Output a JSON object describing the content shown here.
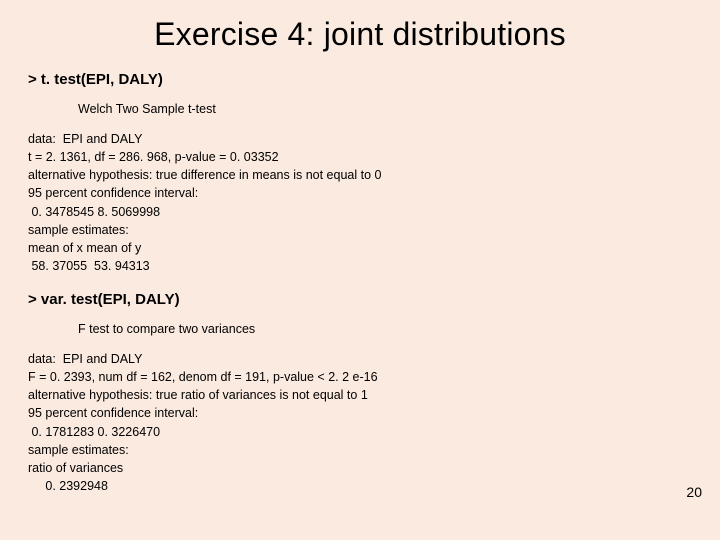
{
  "title": "Exercise 4: joint distributions",
  "ttest": {
    "cmd": "> t. test(EPI, DALY)",
    "subhead": "Welch Two Sample t-test",
    "lines": [
      "data:  EPI and DALY",
      "t = 2. 1361, df = 286. 968, p-value = 0. 03352",
      "alternative hypothesis: true difference in means is not equal to 0",
      "95 percent confidence interval:",
      " 0. 3478545 8. 5069998",
      "sample estimates:",
      "mean of x mean of y",
      " 58. 37055  53. 94313"
    ]
  },
  "vartest": {
    "cmd": "> var. test(EPI, DALY)",
    "subhead": "F test to compare two variances",
    "lines": [
      "data:  EPI and DALY",
      "F = 0. 2393, num df = 162, denom df = 191, p-value < 2. 2 e-16",
      "alternative hypothesis: true ratio of variances is not equal to 1",
      "95 percent confidence interval:",
      " 0. 1781283 0. 3226470",
      "sample estimates:",
      "ratio of variances",
      "     0. 2392948"
    ]
  },
  "page_number": "20"
}
